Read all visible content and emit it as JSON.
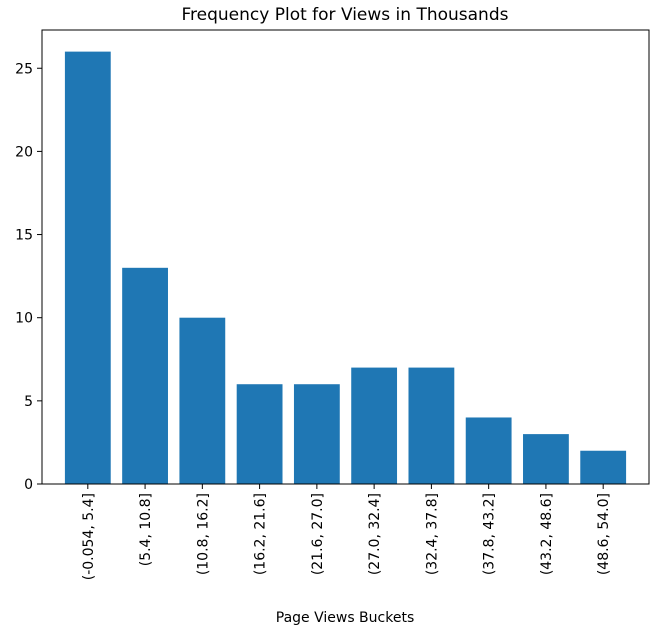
{
  "chart_data": {
    "type": "bar",
    "title": "Frequency Plot for Views in Thousands",
    "xlabel": "Page Views Buckets",
    "ylabel": "",
    "categories": [
      "(-0.054, 5.4]",
      "(5.4, 10.8]",
      "(10.8, 16.2]",
      "(16.2, 21.6]",
      "(21.6, 27.0]",
      "(27.0, 32.4]",
      "(32.4, 37.8]",
      "(37.8, 43.2]",
      "(43.2, 48.6]",
      "(48.6, 54.0]"
    ],
    "values": [
      26,
      13,
      10,
      6,
      6,
      7,
      7,
      4,
      3,
      2
    ],
    "ylim": [
      0,
      27.3
    ],
    "yticks": [
      0,
      5,
      10,
      15,
      20,
      25
    ],
    "bar_color": "#1f77b4",
    "grid": false,
    "legend": "none"
  }
}
